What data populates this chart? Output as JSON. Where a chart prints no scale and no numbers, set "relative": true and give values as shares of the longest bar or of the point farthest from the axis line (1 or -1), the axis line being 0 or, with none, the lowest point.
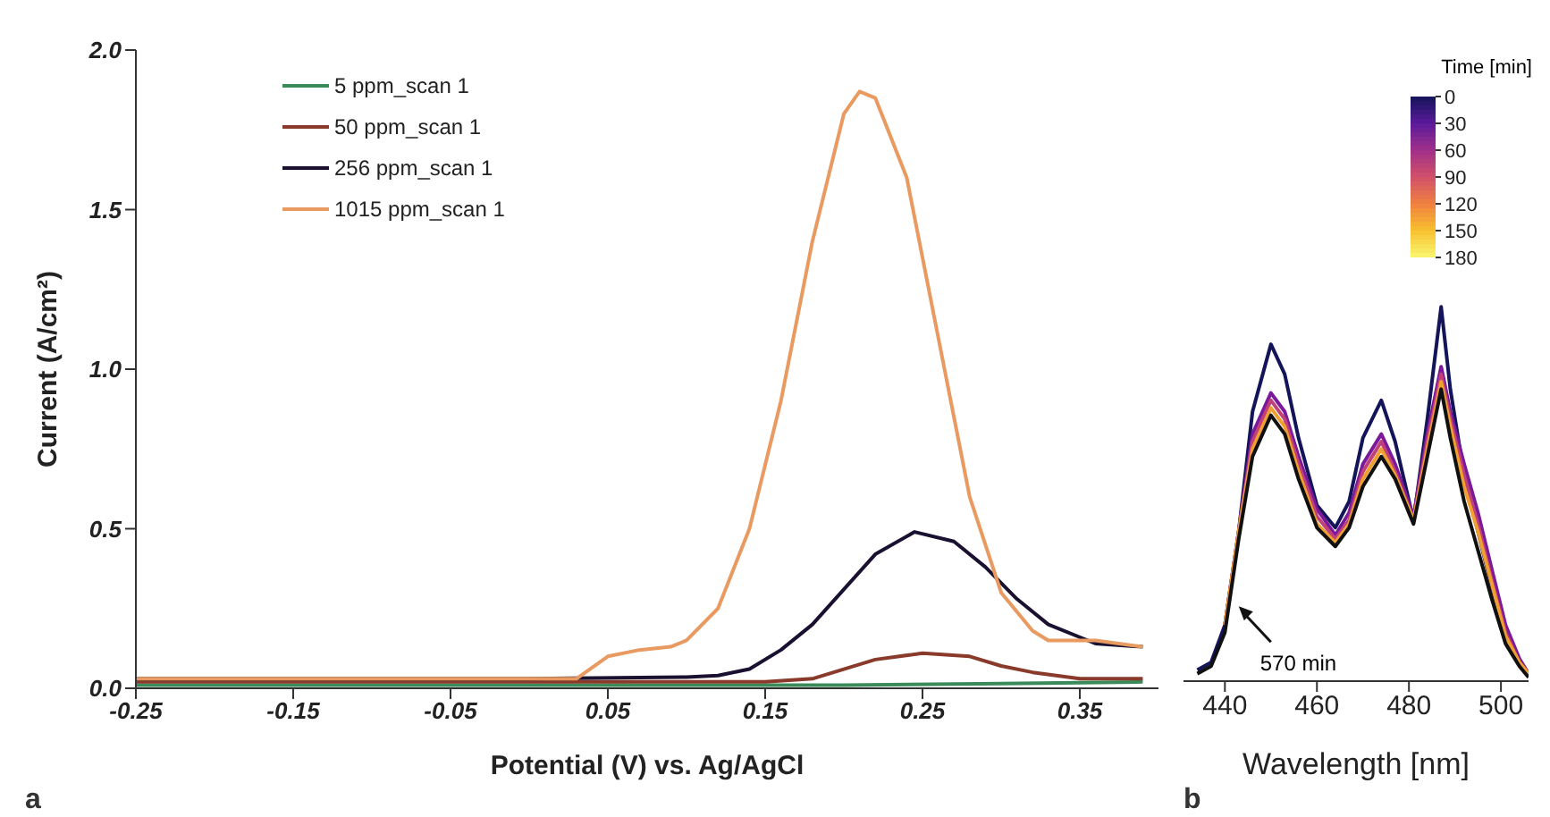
{
  "chart_data": [
    {
      "type": "line",
      "xlabel": "Potential  (V) vs. Ag/AgCl",
      "ylabel": "Current (A/cm²)",
      "xlim": [
        -0.25,
        0.4
      ],
      "xticks": [
        -0.25,
        -0.15,
        -0.05,
        0.05,
        0.15,
        0.25,
        0.35
      ],
      "ylim": [
        0,
        2
      ],
      "yticks": [
        {
          "value": 0,
          "label": "0.0"
        },
        {
          "value": 0.5,
          "label": "0.5"
        },
        {
          "value": 1,
          "label": "1.0"
        },
        {
          "value": 1.5,
          "label": "1.5"
        },
        {
          "value": 2,
          "label": "2.0"
        }
      ],
      "legend": "top left",
      "annotations": [
        "a"
      ],
      "series": [
        {
          "name": "5 ppm_scan 1",
          "color": "#3a8a5a",
          "x": [
            -0.25,
            0.0,
            0.2,
            0.3,
            0.39
          ],
          "values": [
            0.01,
            0.01,
            0.01,
            0.015,
            0.02
          ]
        },
        {
          "name": "50 ppm_scan 1",
          "color": "#8a3a2a",
          "x": [
            -0.25,
            0.15,
            0.18,
            0.2,
            0.22,
            0.25,
            0.28,
            0.3,
            0.32,
            0.35,
            0.39
          ],
          "values": [
            0.02,
            0.02,
            0.03,
            0.06,
            0.09,
            0.11,
            0.1,
            0.07,
            0.05,
            0.03,
            0.03
          ]
        },
        {
          "name": "256 ppm_scan 1",
          "color": "#1a1030",
          "x": [
            -0.25,
            0.0,
            0.1,
            0.12,
            0.14,
            0.16,
            0.18,
            0.2,
            0.22,
            0.245,
            0.27,
            0.29,
            0.31,
            0.33,
            0.36,
            0.39
          ],
          "values": [
            0.03,
            0.03,
            0.035,
            0.04,
            0.06,
            0.12,
            0.2,
            0.31,
            0.42,
            0.49,
            0.46,
            0.38,
            0.28,
            0.2,
            0.14,
            0.13
          ]
        },
        {
          "name": "1015 ppm_scan 1",
          "color": "#e89a60",
          "x": [
            -0.25,
            0.03,
            0.05,
            0.07,
            0.09,
            0.1,
            0.12,
            0.14,
            0.16,
            0.18,
            0.2,
            0.21,
            0.22,
            0.24,
            0.26,
            0.28,
            0.3,
            0.32,
            0.33,
            0.36,
            0.39
          ],
          "values": [
            0.03,
            0.03,
            0.1,
            0.12,
            0.13,
            0.15,
            0.25,
            0.5,
            0.9,
            1.4,
            1.8,
            1.87,
            1.85,
            1.6,
            1.1,
            0.6,
            0.3,
            0.18,
            0.15,
            0.15,
            0.13
          ]
        }
      ]
    },
    {
      "type": "line",
      "relative": true,
      "xlabel": "Wavelength [nm]",
      "xlim": [
        431,
        506
      ],
      "xticks": [
        440,
        460,
        480,
        500
      ],
      "tick_labels": "x",
      "clabel": "Time [min]",
      "clim": [
        0,
        180
      ],
      "cticks": [
        0,
        30,
        60,
        90,
        120,
        150,
        180
      ],
      "annotations": [
        {
          "text": "570 min",
          "x": 443,
          "y": 0.2
        },
        "b"
      ],
      "series": [
        {
          "color": "#14145a",
          "x": [
            434,
            437,
            440,
            443,
            446,
            450,
            453,
            456,
            460,
            464,
            467,
            470,
            474,
            477,
            481,
            484,
            487,
            489,
            492,
            495,
            498,
            501,
            504,
            506
          ],
          "values": [
            0.03,
            0.05,
            0.15,
            0.4,
            0.72,
            0.9,
            0.82,
            0.65,
            0.47,
            0.41,
            0.48,
            0.65,
            0.75,
            0.64,
            0.43,
            0.7,
            1.0,
            0.78,
            0.55,
            0.4,
            0.25,
            0.12,
            0.05,
            0.02
          ]
        },
        {
          "color": "#7a1a9a",
          "x": [
            440,
            443,
            446,
            450,
            453,
            456,
            460,
            464,
            467,
            470,
            474,
            477,
            481,
            484,
            487,
            489,
            492,
            495,
            498,
            501,
            504,
            506
          ],
          "values": [
            0.15,
            0.4,
            0.66,
            0.77,
            0.72,
            0.6,
            0.46,
            0.39,
            0.45,
            0.58,
            0.66,
            0.58,
            0.44,
            0.66,
            0.84,
            0.72,
            0.58,
            0.45,
            0.3,
            0.15,
            0.06,
            0.02
          ]
        },
        {
          "color": "#c0407a",
          "x": [
            440,
            443,
            446,
            450,
            453,
            456,
            460,
            464,
            467,
            470,
            474,
            477,
            481,
            484,
            487,
            489,
            492,
            495,
            498,
            501,
            504,
            506
          ],
          "values": [
            0.15,
            0.4,
            0.64,
            0.75,
            0.7,
            0.58,
            0.44,
            0.38,
            0.43,
            0.56,
            0.64,
            0.56,
            0.43,
            0.64,
            0.82,
            0.7,
            0.55,
            0.42,
            0.27,
            0.13,
            0.05,
            0.02
          ]
        },
        {
          "color": "#f0a030",
          "x": [
            440,
            443,
            446,
            450,
            453,
            456,
            460,
            464,
            467,
            470,
            474,
            477,
            481,
            484,
            487,
            489,
            492,
            495,
            498,
            501,
            504,
            506
          ],
          "values": [
            0.15,
            0.4,
            0.62,
            0.73,
            0.68,
            0.56,
            0.42,
            0.37,
            0.42,
            0.54,
            0.62,
            0.55,
            0.43,
            0.62,
            0.8,
            0.68,
            0.52,
            0.4,
            0.26,
            0.12,
            0.05,
            0.02
          ]
        },
        {
          "color": "#101010",
          "x": [
            434,
            437,
            440,
            443,
            446,
            450,
            453,
            456,
            460,
            464,
            467,
            470,
            474,
            477,
            481,
            484,
            487,
            489,
            492,
            495,
            498,
            501,
            504,
            506
          ],
          "values": [
            0.02,
            0.04,
            0.13,
            0.38,
            0.6,
            0.71,
            0.66,
            0.54,
            0.41,
            0.36,
            0.41,
            0.52,
            0.6,
            0.54,
            0.42,
            0.6,
            0.78,
            0.65,
            0.48,
            0.35,
            0.22,
            0.1,
            0.04,
            0.01
          ]
        }
      ]
    }
  ]
}
